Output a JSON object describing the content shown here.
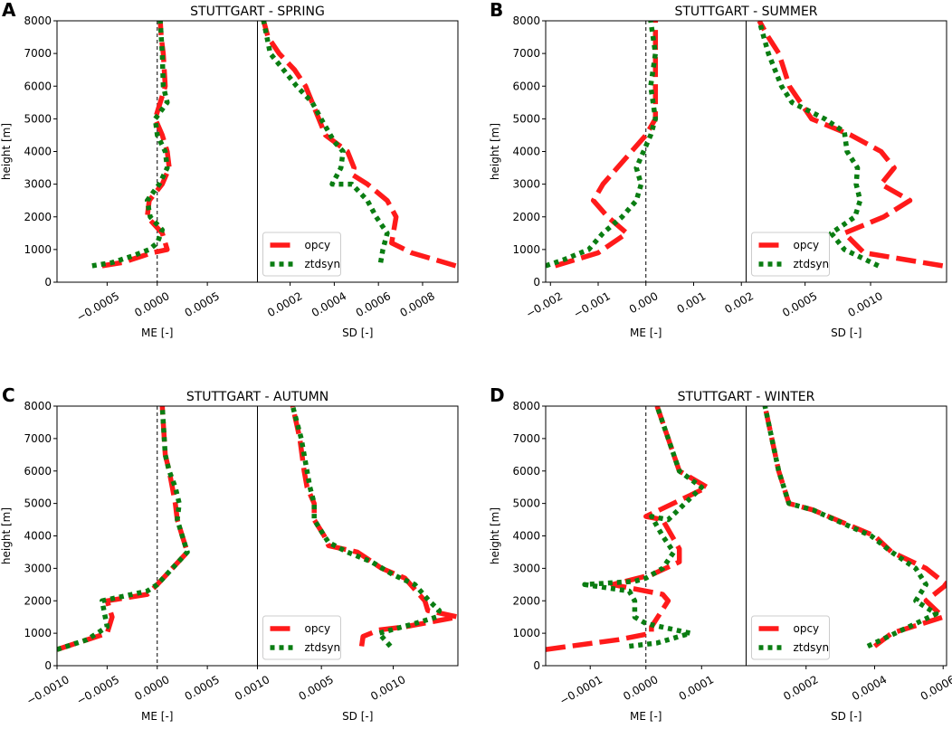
{
  "legend": {
    "opcy": "opcy",
    "ztdsyn": "ztdsyn"
  },
  "colors": {
    "opcy": "#ff1a1a",
    "ztdsyn": "#0a7d12"
  },
  "chart_data": [
    {
      "type": "line",
      "letter": "A",
      "title": "STUTTGART - SPRING",
      "ylabel": "height [m]",
      "ylim": [
        0,
        8000
      ],
      "yticks": [
        "0",
        "1000",
        "2000",
        "3000",
        "4000",
        "5000",
        "6000",
        "7000",
        "8000"
      ],
      "me": {
        "xlabel": "ME [-]",
        "xlim": [
          -0.001,
          0.001
        ],
        "xticks": [
          {
            "v": -0.0005,
            "label": "−0.0005"
          },
          {
            "v": 0.0,
            "label": "0.0000"
          },
          {
            "v": 0.0005,
            "label": "0.0005"
          }
        ],
        "series": [
          {
            "name": "opcy",
            "x": [
              -0.00055,
              -0.00035,
              -0.00015,
              -5e-05,
              0.0001,
              5e-05,
              -0.0001,
              -8e-05,
              5e-05,
              0.00012,
              0.0001,
              5e-05,
              -2e-05,
              3e-05,
              8e-05,
              6e-05,
              4e-05,
              3e-05
            ],
            "y": [
              500,
              600,
              800,
              900,
              1000,
              1500,
              2000,
              2500,
              3000,
              3500,
              4000,
              4500,
              5000,
              5500,
              6000,
              7000,
              7500,
              8000
            ]
          },
          {
            "name": "ztdsyn",
            "x": [
              -0.00065,
              -0.00045,
              -0.00025,
              -8e-05,
              0.0,
              5e-05,
              -7e-05,
              -0.0001,
              2e-05,
              0.0001,
              8e-05,
              0.0,
              -2e-05,
              0.0001,
              6e-05,
              5e-05,
              4e-05,
              3e-05
            ],
            "y": [
              500,
              600,
              800,
              1000,
              1200,
              1600,
              2000,
              2500,
              3000,
              3500,
              4000,
              4500,
              5000,
              5500,
              6000,
              7000,
              7500,
              8000
            ]
          }
        ]
      },
      "sd": {
        "xlabel": "SD [-]",
        "xlim": [
          5.2e-05,
          0.00096
        ],
        "xticks": [
          {
            "v": 0.0002,
            "label": "0.0002"
          },
          {
            "v": 0.0004,
            "label": "0.0004"
          },
          {
            "v": 0.0006,
            "label": "0.0006"
          },
          {
            "v": 0.0008,
            "label": "0.0008"
          }
        ],
        "series": [
          {
            "name": "opcy",
            "x": [
              0.00095,
              0.00085,
              0.00075,
              0.00066,
              0.00068,
              0.00064,
              0.00055,
              0.00048,
              0.00049,
              0.00046,
              0.00036,
              0.00033,
              0.00027,
              0.00022,
              0.00015,
              0.0001,
              8e-05
            ],
            "y": [
              500,
              700,
              900,
              1200,
              2000,
              2500,
              3000,
              3300,
              3500,
              4000,
              4500,
              5000,
              6000,
              6500,
              7000,
              7500,
              8000
            ]
          },
          {
            "name": "ztdsyn",
            "x": [
              0.00061,
              0.00062,
              0.00064,
              0.00059,
              0.00055,
              0.00048,
              0.00039,
              0.00043,
              0.00044,
              0.0004,
              0.00034,
              0.0003,
              0.00023,
              0.00017,
              0.00011,
              8e-05
            ],
            "y": [
              600,
              1000,
              1500,
              2000,
              2500,
              3000,
              3000,
              3500,
              4000,
              4300,
              5000,
              5500,
              6000,
              6500,
              7000,
              8000
            ]
          }
        ]
      }
    },
    {
      "type": "line",
      "letter": "B",
      "title": "STUTTGART - SUMMER",
      "ylabel": "height [m]",
      "ylim": [
        0,
        8000
      ],
      "yticks": [
        "0",
        "1000",
        "2000",
        "3000",
        "4000",
        "5000",
        "6000",
        "7000",
        "8000"
      ],
      "me": {
        "xlabel": "ME [-]",
        "xlim": [
          -0.0021,
          0.0021
        ],
        "xticks": [
          {
            "v": -0.002,
            "label": "−0.002"
          },
          {
            "v": -0.001,
            "label": "−0.001"
          },
          {
            "v": 0.0,
            "label": "0.000"
          },
          {
            "v": 0.001,
            "label": "0.001"
          },
          {
            "v": 0.002,
            "label": "0.002"
          }
        ],
        "series": [
          {
            "name": "opcy",
            "x": [
              -0.0019,
              -0.001,
              -0.0004,
              -0.0008,
              -0.0011,
              -0.0009,
              -0.0006,
              -0.0003,
              0.0,
              0.0002,
              0.0002,
              0.0002,
              0.0002,
              0.0002
            ],
            "y": [
              500,
              900,
              1500,
              2000,
              2500,
              3000,
              3500,
              4000,
              4500,
              5000,
              5500,
              6000,
              7000,
              8000
            ]
          },
          {
            "name": "ztdsyn",
            "x": [
              -0.0021,
              -0.0017,
              -0.0012,
              -0.0009,
              -0.0005,
              -0.0002,
              -0.0001,
              -0.0002,
              0.0001,
              0.0002,
              0.0001,
              0.0002,
              0.0001
            ],
            "y": [
              500,
              700,
              1000,
              1500,
              2000,
              2500,
              3000,
              3500,
              4500,
              5000,
              6000,
              7000,
              8000
            ]
          }
        ]
      },
      "sd": {
        "xlabel": "SD [-]",
        "xlim": [
          5e-05,
          0.00158
        ],
        "xticks": [
          {
            "v": 0.0005,
            "label": "0.0005"
          },
          {
            "v": 0.001,
            "label": "0.0010"
          }
        ],
        "series": [
          {
            "name": "opcy",
            "x": [
              0.00155,
              0.00095,
              0.0008,
              0.0011,
              0.0013,
              0.00108,
              0.00118,
              0.00108,
              0.00085,
              0.00055,
              0.00038,
              0.0003,
              0.00022,
              0.00015
            ],
            "y": [
              500,
              900,
              1500,
              2000,
              2500,
              3000,
              3500,
              4000,
              4500,
              5000,
              6000,
              7000,
              7500,
              8000
            ]
          },
          {
            "name": "ztdsyn",
            "x": [
              0.00106,
              0.0008,
              0.0007,
              0.00088,
              0.00092,
              0.00089,
              0.0009,
              0.00082,
              0.0008,
              0.00065,
              0.0004,
              0.00032,
              0.00022,
              0.00015
            ],
            "y": [
              500,
              1000,
              1500,
              2000,
              2500,
              3000,
              3500,
              4000,
              4600,
              5000,
              5500,
              6000,
              7000,
              8000
            ]
          }
        ]
      }
    },
    {
      "type": "line",
      "letter": "C",
      "title": "STUTTGART - AUTUMN",
      "ylabel": "height [m]",
      "ylim": [
        0,
        8000
      ],
      "yticks": [
        "0",
        "1000",
        "2000",
        "3000",
        "4000",
        "5000",
        "6000",
        "7000",
        "8000"
      ],
      "me": {
        "xlabel": "ME [-]",
        "xlim": [
          -0.001,
          0.001
        ],
        "xticks": [
          {
            "v": -0.001,
            "label": "−0.0010"
          },
          {
            "v": -0.0005,
            "label": "−0.0005"
          },
          {
            "v": 0.0,
            "label": "0.0000"
          },
          {
            "v": 0.0005,
            "label": "0.0005"
          },
          {
            "v": 0.001,
            "label": "0.0010"
          }
        ],
        "series": [
          {
            "name": "opcy",
            "x": [
              -0.001,
              -0.0005,
              -0.00045,
              -0.0005,
              -0.0001,
              0.0,
              0.00015,
              0.0003,
              0.00025,
              0.0002,
              0.00018,
              0.00015,
              0.00012,
              8e-05,
              6e-05,
              5e-05
            ],
            "y": [
              500,
              1000,
              1500,
              2000,
              2200,
              2500,
              3000,
              3500,
              4000,
              4500,
              5000,
              5500,
              6000,
              6500,
              7500,
              8000
            ]
          },
          {
            "name": "ztdsyn",
            "x": [
              -0.001,
              -0.0007,
              -0.0005,
              -0.00055,
              -0.0001,
              0.0,
              0.00015,
              0.0003,
              0.00025,
              0.0002,
              0.00022,
              0.00018,
              0.00012,
              8e-05,
              6e-05,
              5e-05
            ],
            "y": [
              500,
              800,
              1200,
              2000,
              2300,
              2500,
              3000,
              3500,
              4000,
              4500,
              5000,
              5500,
              6000,
              6500,
              7500,
              8000
            ]
          }
        ]
      },
      "sd": {
        "xlabel": "SD [-]",
        "xlim": [
          5.5e-05,
          0.00145
        ],
        "xticks": [
          {
            "v": 0.0005,
            "label": "0.0005"
          },
          {
            "v": 0.001,
            "label": "0.0010"
          }
        ],
        "series": [
          {
            "name": "opcy",
            "x": [
              0.00078,
              0.00079,
              0.0009,
              0.00108,
              0.00145,
              0.00124,
              0.00122,
              0.00108,
              0.00092,
              0.00075,
              0.00055,
              0.00052,
              0.00045,
              0.00045,
              0.0004,
              0.00038,
              0.00035,
              0.0003
            ],
            "y": [
              600,
              900,
              1100,
              1200,
              1500,
              1700,
              2000,
              2700,
              3000,
              3500,
              3700,
              4000,
              4500,
              5000,
              5500,
              6000,
              7000,
              8000
            ]
          },
          {
            "name": "ztdsyn",
            "x": [
              0.00098,
              0.0009,
              0.00115,
              0.0013,
              0.00132,
              0.00125,
              0.00115,
              0.001,
              0.00085,
              0.00068,
              0.00055,
              0.00052,
              0.00045,
              0.00045,
              0.00042,
              0.0004,
              0.00036,
              0.0003
            ],
            "y": [
              600,
              1000,
              1300,
              1500,
              1700,
              2000,
              2500,
              2800,
              3200,
              3500,
              3800,
              4000,
              4500,
              5000,
              5500,
              6000,
              7000,
              8000
            ]
          }
        ]
      }
    },
    {
      "type": "line",
      "letter": "D",
      "title": "STUTTGART - WINTER",
      "ylabel": "height [m]",
      "ylim": [
        0,
        8000
      ],
      "yticks": [
        "0",
        "1000",
        "2000",
        "3000",
        "4000",
        "5000",
        "6000",
        "7000",
        "8000"
      ],
      "me": {
        "xlabel": "ME [-]",
        "xlim": [
          -0.00018,
          0.00018
        ],
        "xticks": [
          {
            "v": -0.0001,
            "label": "−0.0001"
          },
          {
            "v": 0.0,
            "label": "0.0000"
          },
          {
            "v": 0.0001,
            "label": "0.0001"
          }
        ],
        "series": [
          {
            "name": "opcy",
            "x": [
              -0.00018,
              -5e-05,
              1e-05,
              1e-05,
              4e-05,
              3e-05,
              -6e-05,
              1e-05,
              6e-05,
              6e-05,
              3e-05,
              0.0,
              0.00011,
              6e-05,
              4e-05,
              2e-05
            ],
            "y": [
              500,
              800,
              1000,
              1200,
              2000,
              2200,
              2500,
              2800,
              3200,
              3600,
              4500,
              4600,
              5500,
              6000,
              7000,
              8000
            ]
          },
          {
            "name": "ztdsyn",
            "x": [
              -3e-05,
              2e-05,
              8e-05,
              0.0,
              -2e-05,
              -2e-05,
              -3e-05,
              -0.00011,
              -2e-05,
              0.0,
              3e-05,
              5e-05,
              3e-05,
              1e-05,
              4e-05,
              0.0001,
              6e-05,
              4e-05,
              2e-05
            ],
            "y": [
              600,
              700,
              1000,
              1300,
              1500,
              2000,
              2300,
              2500,
              2600,
              2700,
              3000,
              3500,
              4000,
              4600,
              4500,
              5500,
              6000,
              7000,
              8000
            ]
          }
        ]
      },
      "sd": {
        "xlabel": "SD [-]",
        "xlim": [
          2.5e-05,
          0.00061
        ],
        "xticks": [
          {
            "v": 0.0002,
            "label": "0.0002"
          },
          {
            "v": 0.0004,
            "label": "0.0004"
          },
          {
            "v": 0.0006,
            "label": "0.0006"
          }
        ],
        "series": [
          {
            "name": "opcy",
            "x": [
              0.0004,
              0.00045,
              0.0006,
              0.00055,
              0.00061,
              0.00055,
              0.00045,
              0.0004,
              0.00022,
              0.00015,
              0.00012,
              0.0001,
              8e-05
            ],
            "y": [
              600,
              1000,
              1500,
              2000,
              2500,
              3000,
              3500,
              4000,
              4800,
              5000,
              6000,
              7000,
              8000
            ]
          },
          {
            "name": "ztdsyn",
            "x": [
              0.00038,
              0.0005,
              0.00058,
              0.00052,
              0.00055,
              0.00052,
              0.00045,
              0.00039,
              0.00022,
              0.00015,
              0.00012,
              0.0001,
              8e-05
            ],
            "y": [
              600,
              1200,
              1600,
              2000,
              2500,
              3000,
              3500,
              4000,
              4800,
              5000,
              6000,
              7000,
              8000
            ]
          }
        ]
      }
    }
  ]
}
